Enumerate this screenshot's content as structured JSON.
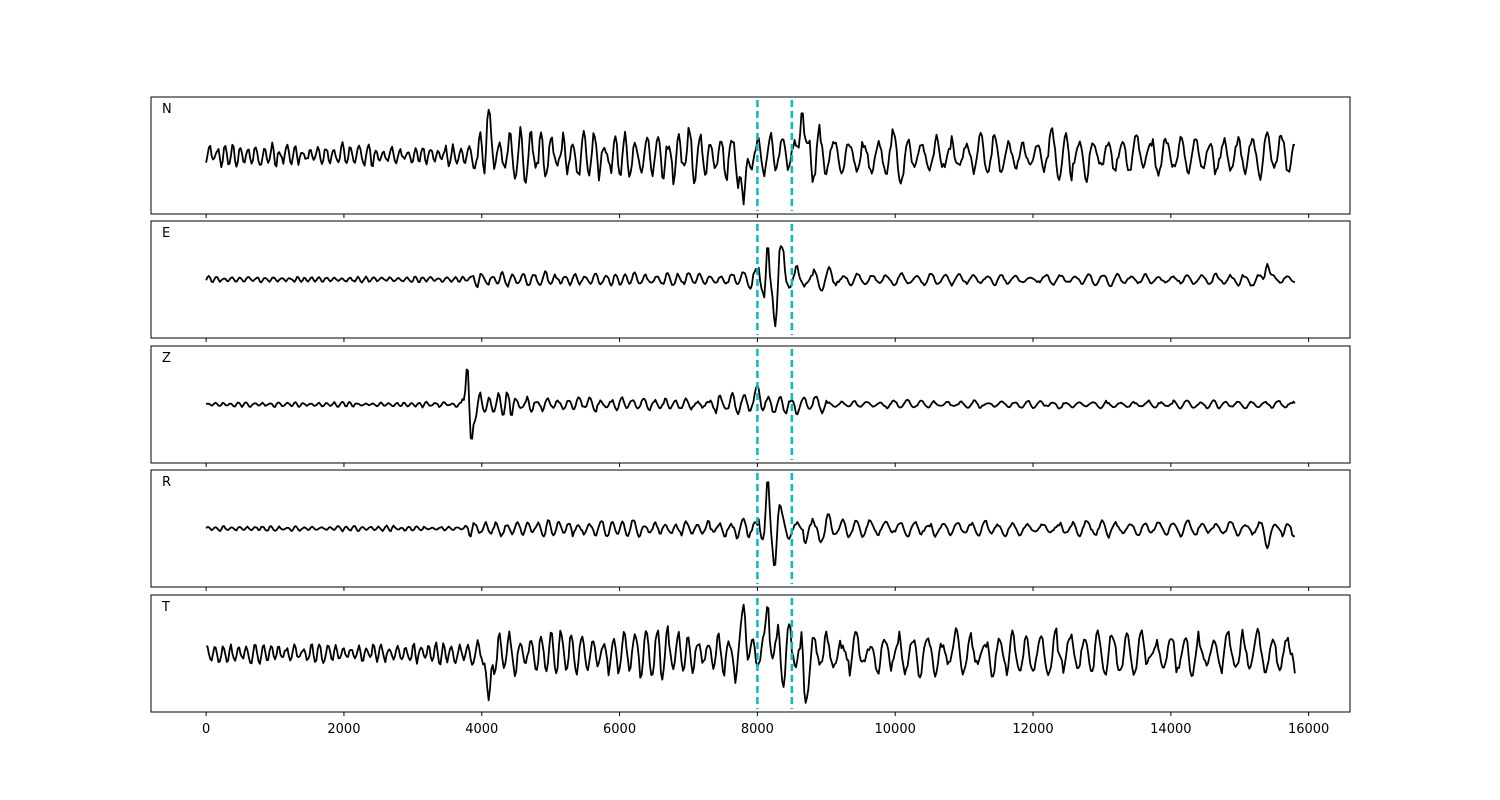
{
  "chart_data": {
    "type": "line",
    "xlabel": "",
    "ylabel": "",
    "xlim": [
      -800,
      16600
    ],
    "xticks": [
      0,
      2000,
      4000,
      6000,
      8000,
      10000,
      12000,
      14000,
      16000
    ],
    "xtick_labels": [
      "0",
      "2000",
      "4000",
      "6000",
      "8000",
      "10000",
      "12000",
      "14000",
      "16000"
    ],
    "x_range": [
      0,
      15800
    ],
    "grid": false,
    "trace_color": "#000000",
    "marker_color": "#00bfbf",
    "markers": [
      8000,
      8500
    ],
    "panels": [
      {
        "label": "N",
        "segments": [
          {
            "x_start": 0,
            "x_end": 3800,
            "amplitude": 0.22,
            "period": 60
          },
          {
            "x_start": 3800,
            "x_end": 7700,
            "amplitude": 0.48,
            "period": 80
          },
          {
            "x_start": 7700,
            "x_end": 9000,
            "amplitude": 0.62,
            "period": 95
          },
          {
            "x_start": 9000,
            "x_end": 15800,
            "amplitude": 0.48,
            "period": 110
          }
        ],
        "spikes": [
          {
            "x": 4100,
            "value": 0.88
          },
          {
            "x": 7800,
            "value": -0.94
          },
          {
            "x": 8650,
            "value": 0.88
          }
        ]
      },
      {
        "label": "E",
        "segments": [
          {
            "x_start": 0,
            "x_end": 3800,
            "amplitude": 0.06,
            "period": 60
          },
          {
            "x_start": 3800,
            "x_end": 7500,
            "amplitude": 0.14,
            "period": 80
          },
          {
            "x_start": 7500,
            "x_end": 8000,
            "amplitude": 0.18,
            "period": 90
          },
          {
            "x_start": 8000,
            "x_end": 8400,
            "amplitude": 0.72,
            "period": 190
          },
          {
            "x_start": 8400,
            "x_end": 9100,
            "amplitude": 0.24,
            "period": 120
          },
          {
            "x_start": 9100,
            "x_end": 15800,
            "amplitude": 0.12,
            "period": 110
          }
        ],
        "spikes": [
          {
            "x": 8150,
            "value": 0.68
          },
          {
            "x": 8260,
            "value": -0.9
          },
          {
            "x": 15400,
            "value": 0.3
          }
        ]
      },
      {
        "label": "Z",
        "segments": [
          {
            "x_start": 0,
            "x_end": 3700,
            "amplitude": 0.05,
            "period": 60
          },
          {
            "x_start": 3700,
            "x_end": 4600,
            "amplitude": 0.22,
            "period": 70
          },
          {
            "x_start": 4600,
            "x_end": 7300,
            "amplitude": 0.14,
            "period": 80
          },
          {
            "x_start": 7300,
            "x_end": 9000,
            "amplitude": 0.2,
            "period": 90
          },
          {
            "x_start": 9000,
            "x_end": 15800,
            "amplitude": 0.08,
            "period": 100
          }
        ],
        "spikes": [
          {
            "x": 3800,
            "value": 1.0
          },
          {
            "x": 3850,
            "value": -0.72
          },
          {
            "x": 8000,
            "value": 0.38
          }
        ]
      },
      {
        "label": "R",
        "segments": [
          {
            "x_start": 0,
            "x_end": 3800,
            "amplitude": 0.05,
            "period": 60
          },
          {
            "x_start": 3800,
            "x_end": 7500,
            "amplitude": 0.16,
            "period": 80
          },
          {
            "x_start": 7500,
            "x_end": 8000,
            "amplitude": 0.2,
            "period": 90
          },
          {
            "x_start": 8000,
            "x_end": 8400,
            "amplitude": 0.6,
            "period": 190
          },
          {
            "x_start": 8400,
            "x_end": 9100,
            "amplitude": 0.26,
            "period": 120
          },
          {
            "x_start": 9100,
            "x_end": 15800,
            "amplitude": 0.15,
            "period": 110
          }
        ],
        "spikes": [
          {
            "x": 8150,
            "value": 0.98
          },
          {
            "x": 8250,
            "value": -0.76
          },
          {
            "x": 15400,
            "value": -0.38
          }
        ]
      },
      {
        "label": "T",
        "segments": [
          {
            "x_start": 0,
            "x_end": 3800,
            "amplitude": 0.2,
            "period": 60
          },
          {
            "x_start": 3800,
            "x_end": 7600,
            "amplitude": 0.45,
            "period": 80
          },
          {
            "x_start": 7600,
            "x_end": 9000,
            "amplitude": 0.6,
            "period": 95
          },
          {
            "x_start": 9000,
            "x_end": 15800,
            "amplitude": 0.42,
            "period": 110
          }
        ],
        "spikes": [
          {
            "x": 4100,
            "value": -0.9
          },
          {
            "x": 7800,
            "value": 0.94
          },
          {
            "x": 8150,
            "value": 0.95
          },
          {
            "x": 8700,
            "value": -0.95
          }
        ]
      }
    ]
  }
}
